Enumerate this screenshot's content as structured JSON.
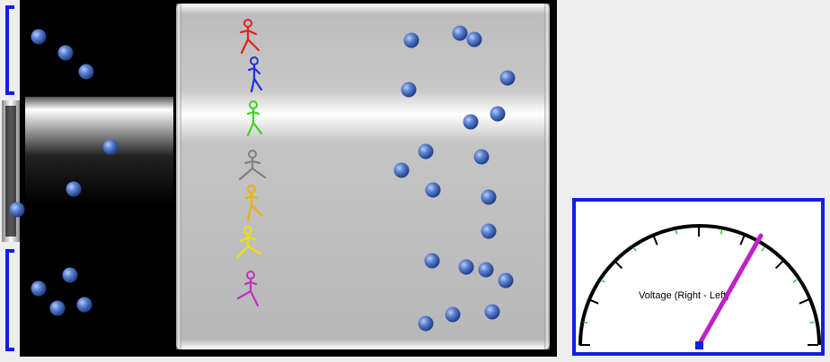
{
  "colors": {
    "background": "#eeeeee",
    "chamber_dark": "#000000",
    "chamber_light": "#b8b8b8",
    "bracket": "#1020e0",
    "electron": "#4a70c8",
    "needle": "#c020c8",
    "meter_border": "#1020e0"
  },
  "people": [
    {
      "name": "red-person",
      "color": "#e02020",
      "icon": "stick-figure"
    },
    {
      "name": "blue-person",
      "color": "#2030e0",
      "icon": "stick-figure"
    },
    {
      "name": "green-person",
      "color": "#40d020",
      "icon": "stick-figure"
    },
    {
      "name": "gray-person",
      "color": "#808080",
      "icon": "stick-figure"
    },
    {
      "name": "orange-person",
      "color": "#f0b000",
      "icon": "stick-figure"
    },
    {
      "name": "yellow-person",
      "color": "#f0e000",
      "icon": "stick-figure"
    },
    {
      "name": "purple-person",
      "color": "#c030c0",
      "icon": "stick-figure"
    }
  ],
  "meter": {
    "label": "Voltage (Right - Left)",
    "icon": "voltmeter-dial"
  }
}
